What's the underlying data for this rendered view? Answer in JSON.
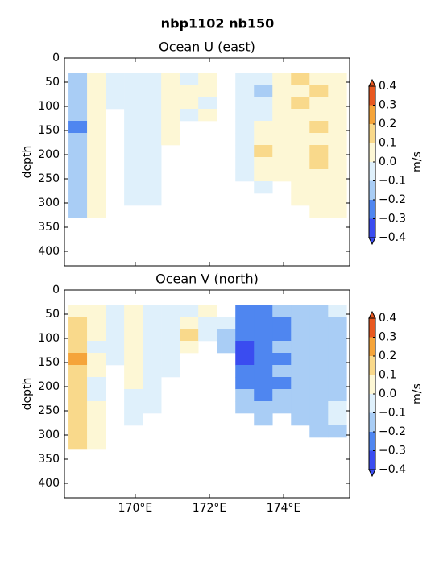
{
  "title": "nbp1102 nb150",
  "chart_data": [
    {
      "type": "heatmap",
      "title": "Ocean U (east)",
      "ylabel": "depth",
      "xlim": [
        168.09,
        175.78
      ],
      "ylim": [
        430,
        0
      ],
      "yticks": [
        0,
        50,
        100,
        150,
        200,
        250,
        300,
        350,
        400
      ],
      "x_edges": [
        168.2,
        168.7,
        169.2,
        169.7,
        170.2,
        170.7,
        171.2,
        171.7,
        172.2,
        172.7,
        173.2,
        173.7,
        174.2,
        174.7,
        175.2,
        175.7
      ],
      "depth_edges": [
        30,
        55,
        80,
        105,
        130,
        155,
        180,
        205,
        230,
        255,
        280,
        305,
        330
      ],
      "z": [
        [
          -0.15,
          0.05,
          -0.05,
          -0.05,
          -0.05,
          0.05,
          -0.05,
          0.05,
          null,
          -0.05,
          -0.05,
          0.05,
          0.15,
          0.05,
          0.05
        ],
        [
          -0.15,
          0.05,
          -0.05,
          -0.05,
          -0.05,
          0.05,
          0.05,
          0.05,
          null,
          -0.05,
          -0.15,
          0.05,
          0.05,
          0.15,
          0.05
        ],
        [
          -0.15,
          0.05,
          -0.05,
          -0.05,
          -0.05,
          0.05,
          0.05,
          -0.05,
          null,
          -0.05,
          -0.05,
          0.05,
          0.15,
          0.05,
          0.05
        ],
        [
          -0.15,
          0.05,
          null,
          -0.05,
          -0.05,
          0.05,
          -0.05,
          0.05,
          null,
          -0.05,
          -0.05,
          0.05,
          0.05,
          0.05,
          0.05
        ],
        [
          -0.25,
          0.05,
          null,
          -0.05,
          -0.05,
          0.05,
          null,
          null,
          null,
          -0.05,
          0.05,
          0.05,
          0.05,
          0.15,
          0.05
        ],
        [
          -0.15,
          0.05,
          null,
          -0.05,
          -0.05,
          0.05,
          null,
          null,
          null,
          -0.05,
          0.05,
          0.05,
          0.05,
          0.05,
          0.05
        ],
        [
          -0.15,
          0.05,
          null,
          -0.05,
          -0.05,
          null,
          null,
          null,
          null,
          -0.05,
          0.15,
          0.05,
          0.05,
          0.15,
          0.05
        ],
        [
          -0.15,
          0.05,
          null,
          -0.05,
          -0.05,
          null,
          null,
          null,
          null,
          -0.05,
          0.05,
          0.05,
          0.05,
          0.15,
          0.05
        ],
        [
          -0.15,
          0.05,
          null,
          -0.05,
          -0.05,
          null,
          null,
          null,
          null,
          -0.05,
          0.05,
          0.05,
          0.05,
          0.05,
          0.05
        ],
        [
          -0.15,
          0.05,
          null,
          -0.05,
          -0.05,
          null,
          null,
          null,
          null,
          null,
          -0.05,
          null,
          0.05,
          0.05,
          0.05
        ],
        [
          -0.15,
          0.05,
          null,
          -0.05,
          -0.05,
          null,
          null,
          null,
          null,
          null,
          null,
          null,
          0.05,
          0.05,
          0.05
        ],
        [
          -0.15,
          0.05,
          null,
          null,
          null,
          null,
          null,
          null,
          null,
          null,
          null,
          null,
          null,
          0.05,
          0.05
        ]
      ],
      "colorbar": {
        "label": "m/s",
        "levels": [
          -0.4,
          -0.3,
          -0.2,
          -0.1,
          0,
          0.1,
          0.2,
          0.3,
          0.4
        ],
        "colors": [
          "#3a4cf0",
          "#4f86f0",
          "#a9cdf5",
          "#dff0fb",
          "#fdf7d5",
          "#f9d98b",
          "#f5a43a",
          "#e85820"
        ],
        "ticks": [
          {
            "value": -0.4,
            "label": "−0.4"
          },
          {
            "value": -0.3,
            "label": "−0.3"
          },
          {
            "value": -0.2,
            "label": "−0.2"
          },
          {
            "value": -0.1,
            "label": "−0.1"
          },
          {
            "value": 0,
            "label": "0.0"
          },
          0.1,
          0.2,
          0.3,
          0.4
        ]
      }
    },
    {
      "type": "heatmap",
      "title": "Ocean V (north)",
      "ylabel": "depth",
      "xlim": [
        168.09,
        175.78
      ],
      "ylim": [
        430,
        0
      ],
      "yticks": [
        0,
        50,
        100,
        150,
        200,
        250,
        300,
        350,
        400
      ],
      "xticks": [
        {
          "value": 170,
          "label": "170°E"
        },
        {
          "value": 172,
          "label": "172°E"
        },
        {
          "value": 174,
          "label": "174°E"
        }
      ],
      "x_edges": [
        168.2,
        168.7,
        169.2,
        169.7,
        170.2,
        170.7,
        171.2,
        171.7,
        172.2,
        172.7,
        173.2,
        173.7,
        174.2,
        174.7,
        175.2,
        175.7
      ],
      "depth_edges": [
        30,
        55,
        80,
        105,
        130,
        155,
        180,
        205,
        230,
        255,
        280,
        305,
        330
      ],
      "z": [
        [
          0.05,
          0.05,
          -0.05,
          0.05,
          -0.05,
          -0.05,
          -0.05,
          0.05,
          null,
          -0.25,
          -0.25,
          -0.15,
          -0.15,
          -0.15,
          -0.05
        ],
        [
          0.15,
          0.05,
          -0.05,
          0.05,
          -0.05,
          -0.05,
          0.05,
          -0.05,
          -0.05,
          -0.25,
          -0.25,
          -0.25,
          -0.15,
          -0.15,
          -0.15
        ],
        [
          0.15,
          0.05,
          -0.05,
          0.05,
          -0.05,
          -0.05,
          0.15,
          -0.05,
          -0.15,
          -0.25,
          -0.25,
          -0.25,
          -0.15,
          -0.15,
          -0.15
        ],
        [
          0.15,
          -0.05,
          -0.05,
          0.05,
          -0.05,
          -0.05,
          0.05,
          null,
          -0.15,
          -0.35,
          -0.25,
          -0.15,
          -0.15,
          -0.15,
          -0.15
        ],
        [
          0.25,
          0.05,
          -0.05,
          0.05,
          -0.05,
          -0.05,
          null,
          null,
          null,
          -0.35,
          -0.25,
          -0.25,
          -0.15,
          -0.15,
          -0.15
        ],
        [
          0.15,
          0.05,
          null,
          0.05,
          -0.05,
          -0.05,
          null,
          null,
          null,
          -0.25,
          -0.25,
          -0.15,
          -0.15,
          -0.15,
          -0.15
        ],
        [
          0.15,
          -0.05,
          null,
          0.05,
          -0.05,
          null,
          null,
          null,
          null,
          -0.25,
          -0.25,
          -0.25,
          -0.15,
          -0.15,
          -0.15
        ],
        [
          0.15,
          -0.05,
          null,
          -0.05,
          -0.05,
          null,
          null,
          null,
          null,
          -0.15,
          -0.25,
          -0.15,
          -0.15,
          -0.15,
          -0.15
        ],
        [
          0.15,
          0.05,
          null,
          -0.05,
          -0.05,
          null,
          null,
          null,
          null,
          -0.15,
          -0.15,
          -0.15,
          -0.15,
          -0.15,
          -0.05
        ],
        [
          0.15,
          0.05,
          null,
          -0.05,
          null,
          null,
          null,
          null,
          null,
          null,
          -0.15,
          null,
          -0.15,
          -0.15,
          -0.05
        ],
        [
          0.15,
          0.05,
          null,
          null,
          null,
          null,
          null,
          null,
          null,
          null,
          null,
          null,
          null,
          -0.15,
          -0.15
        ],
        [
          0.15,
          0.05,
          null,
          null,
          null,
          null,
          null,
          null,
          null,
          null,
          null,
          null,
          null,
          null,
          null
        ]
      ],
      "colorbar": {
        "label": "m/s",
        "levels": [
          -0.4,
          -0.3,
          -0.2,
          -0.1,
          0,
          0.1,
          0.2,
          0.3,
          0.4
        ],
        "colors": [
          "#3a4cf0",
          "#4f86f0",
          "#a9cdf5",
          "#dff0fb",
          "#fdf7d5",
          "#f9d98b",
          "#f5a43a",
          "#e85820"
        ],
        "ticks": [
          {
            "value": -0.4,
            "label": "−0.4"
          },
          {
            "value": -0.3,
            "label": "−0.3"
          },
          {
            "value": -0.2,
            "label": "−0.2"
          },
          {
            "value": -0.1,
            "label": "−0.1"
          },
          {
            "value": 0,
            "label": "0.0"
          },
          0.1,
          0.2,
          0.3,
          0.4
        ]
      }
    }
  ]
}
